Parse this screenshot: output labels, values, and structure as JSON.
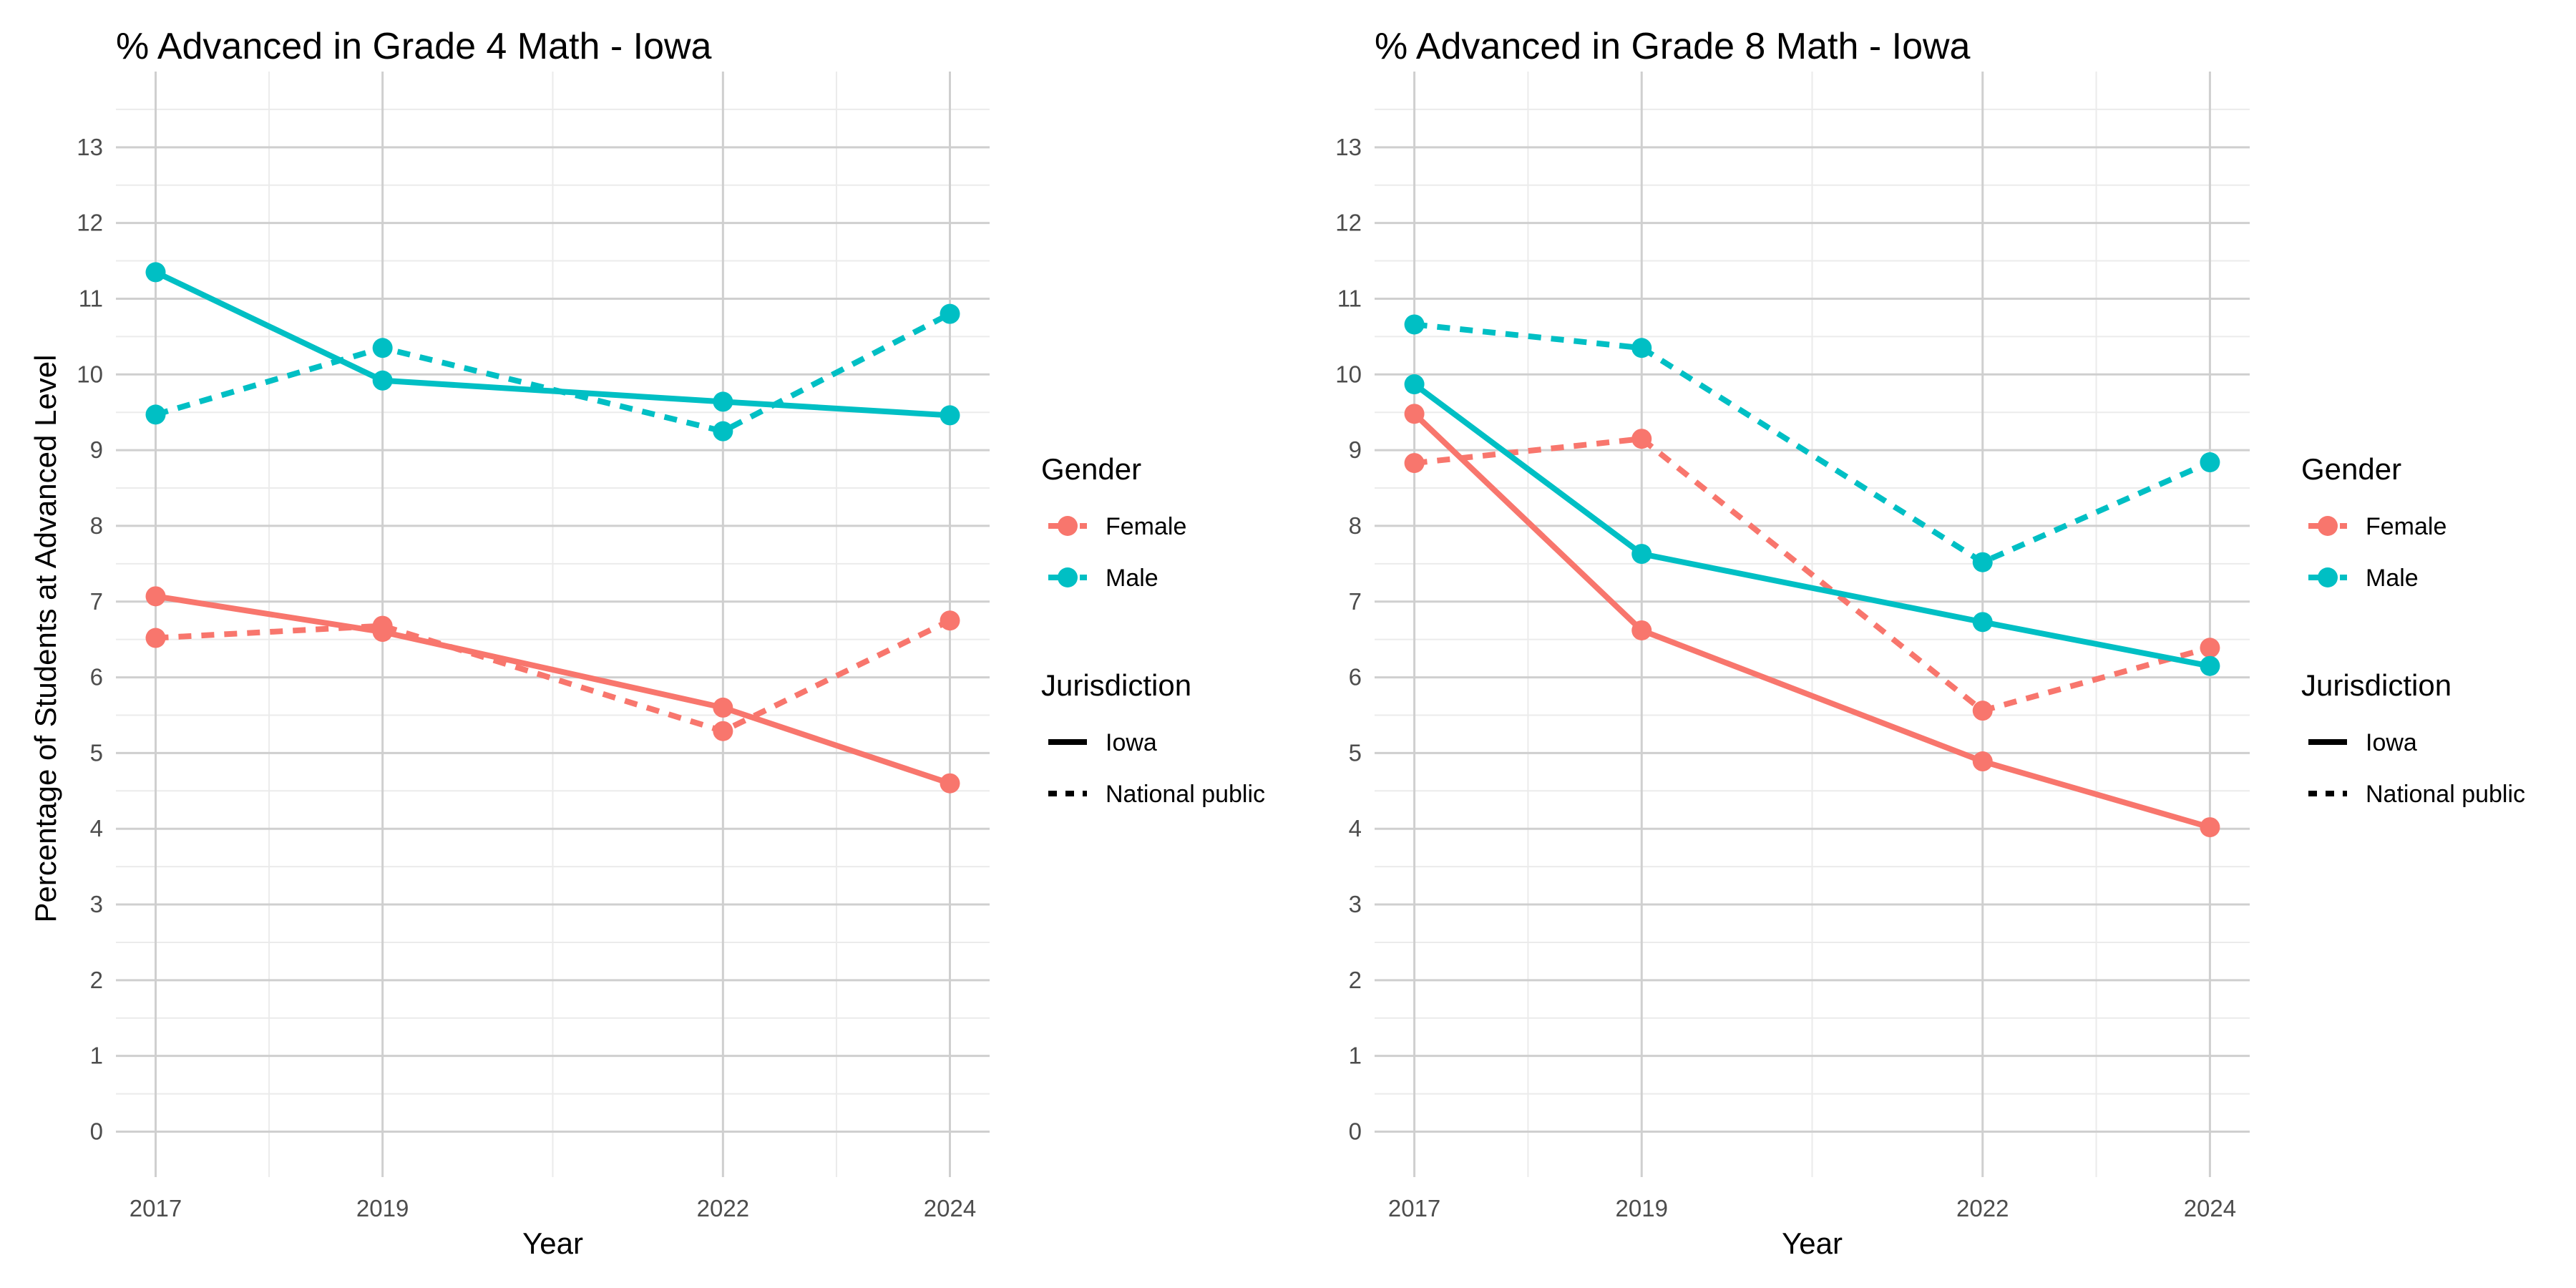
{
  "y_axis_title": "Percentage of Students at Advanced Level",
  "legend": {
    "gender_title": "Gender",
    "genders": [
      {
        "name": "Female",
        "color": "#F8766D"
      },
      {
        "name": "Male",
        "color": "#00BFC4"
      }
    ],
    "jurisdiction_title": "Jurisdiction",
    "jurisdictions": [
      {
        "name": "Iowa",
        "line": "solid"
      },
      {
        "name": "National public",
        "line": "dashed"
      }
    ]
  },
  "chart_data": [
    {
      "type": "line",
      "title": "% Advanced in Grade 4 Math - Iowa",
      "xlabel": "Year",
      "ylabel": "Percentage of Students at Advanced Level",
      "x": [
        2017,
        2019,
        2022,
        2024
      ],
      "x_ticks": [
        "2017",
        "2019",
        "2022",
        "2024"
      ],
      "y_ticks": [
        "0",
        "1",
        "2",
        "3",
        "4",
        "5",
        "6",
        "7",
        "8",
        "9",
        "10",
        "11",
        "12",
        "13"
      ],
      "ylim": [
        -0.6,
        14
      ],
      "grid": true,
      "legend_position": "right",
      "series": [
        {
          "gender": "Female",
          "jurisdiction": "Iowa",
          "values": [
            7.07,
            6.6,
            5.6,
            4.6
          ]
        },
        {
          "gender": "Female",
          "jurisdiction": "National public",
          "values": [
            6.52,
            6.68,
            5.29,
            6.75
          ]
        },
        {
          "gender": "Male",
          "jurisdiction": "Iowa",
          "values": [
            11.35,
            9.92,
            9.64,
            9.46
          ]
        },
        {
          "gender": "Male",
          "jurisdiction": "National public",
          "values": [
            9.47,
            10.35,
            9.25,
            10.8
          ]
        }
      ]
    },
    {
      "type": "line",
      "title": "% Advanced in Grade 8 Math - Iowa",
      "xlabel": "Year",
      "ylabel": "",
      "x": [
        2017,
        2019,
        2022,
        2024
      ],
      "x_ticks": [
        "2017",
        "2019",
        "2022",
        "2024"
      ],
      "y_ticks": [
        "0",
        "1",
        "2",
        "3",
        "4",
        "5",
        "6",
        "7",
        "8",
        "9",
        "10",
        "11",
        "12",
        "13"
      ],
      "ylim": [
        -0.6,
        14
      ],
      "grid": true,
      "legend_position": "right",
      "series": [
        {
          "gender": "Female",
          "jurisdiction": "Iowa",
          "values": [
            9.48,
            6.62,
            4.89,
            4.02
          ]
        },
        {
          "gender": "Female",
          "jurisdiction": "National public",
          "values": [
            8.83,
            9.15,
            5.56,
            6.39
          ]
        },
        {
          "gender": "Male",
          "jurisdiction": "Iowa",
          "values": [
            9.87,
            7.63,
            6.73,
            6.15
          ]
        },
        {
          "gender": "Male",
          "jurisdiction": "National public",
          "values": [
            10.66,
            10.35,
            7.52,
            8.84
          ]
        }
      ]
    }
  ]
}
